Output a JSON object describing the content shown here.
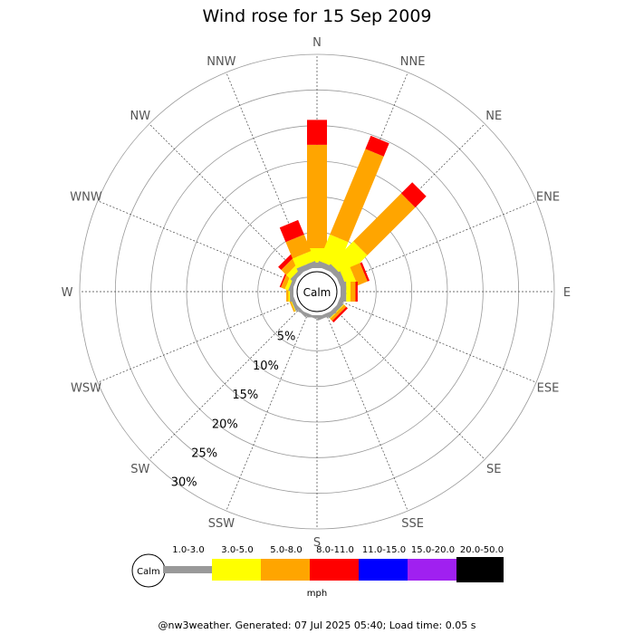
{
  "chart_data": {
    "type": "windrose",
    "title": "Wind rose for 15 Sep 2009",
    "directions": [
      "N",
      "NNE",
      "NE",
      "ENE",
      "E",
      "ESE",
      "SE",
      "SSE",
      "S",
      "SSW",
      "SW",
      "WSW",
      "W",
      "WNW",
      "NW",
      "NNW"
    ],
    "radial_ticks": [
      "5%",
      "10%",
      "15%",
      "20%",
      "25%",
      "30%"
    ],
    "radial_max": 30,
    "calm_label": "Calm",
    "bins": [
      {
        "label": "1.0-3.0",
        "color": "#999999"
      },
      {
        "label": "3.0-5.0",
        "color": "#ffff00"
      },
      {
        "label": "5.0-8.0",
        "color": "#ffa500"
      },
      {
        "label": "8.0-11.0",
        "color": "#ff0000"
      },
      {
        "label": "11.0-15.0",
        "color": "#0000ff"
      },
      {
        "label": "15.0-20.0",
        "color": "#a020f0"
      },
      {
        "label": "20.0-50.0",
        "color": "#000000"
      }
    ],
    "series": [
      {
        "direction": "N",
        "values": [
          0.8,
          2.0,
          14.5,
          3.5,
          0,
          0,
          0
        ]
      },
      {
        "direction": "NNE",
        "values": [
          0.8,
          4.0,
          13.0,
          2.0,
          0,
          0,
          0
        ]
      },
      {
        "direction": "NE",
        "values": [
          0.8,
          4.5,
          9.5,
          2.2,
          0,
          0,
          0
        ]
      },
      {
        "direction": "ENE",
        "values": [
          0.8,
          1.5,
          1.5,
          0.3,
          0,
          0,
          0
        ]
      },
      {
        "direction": "E",
        "values": [
          0.8,
          0.6,
          0.7,
          0.3,
          0,
          0,
          0
        ]
      },
      {
        "direction": "ESE",
        "values": [
          0.6,
          0,
          0,
          0,
          0,
          0,
          0
        ]
      },
      {
        "direction": "SE",
        "values": [
          0.6,
          0.1,
          0.4,
          0.3,
          0,
          0,
          0
        ]
      },
      {
        "direction": "SSE",
        "values": [
          0.5,
          0,
          0,
          0,
          0,
          0,
          0
        ]
      },
      {
        "direction": "S",
        "values": [
          0.3,
          0,
          0,
          0,
          0,
          0,
          0
        ]
      },
      {
        "direction": "SSW",
        "values": [
          0.3,
          0,
          0,
          0,
          0,
          0,
          0
        ]
      },
      {
        "direction": "SW",
        "values": [
          0.4,
          0,
          0,
          0,
          0,
          0,
          0
        ]
      },
      {
        "direction": "WSW",
        "values": [
          0.5,
          0.1,
          0.2,
          0,
          0,
          0,
          0
        ]
      },
      {
        "direction": "W",
        "values": [
          0.5,
          0.2,
          0.3,
          0,
          0,
          0,
          0
        ]
      },
      {
        "direction": "WNW",
        "values": [
          0.5,
          0.5,
          0.6,
          0.2,
          0,
          0,
          0
        ]
      },
      {
        "direction": "NW",
        "values": [
          0.6,
          0.8,
          1.0,
          0.6,
          0,
          0,
          0
        ]
      },
      {
        "direction": "NNW",
        "values": [
          0.8,
          1.5,
          2.5,
          2.2,
          0,
          0,
          0
        ]
      }
    ],
    "legend_unit": "mph",
    "grid": true
  },
  "footer": "@nw3weather. Generated: 07 Jul 2025 05:40; Load time: 0.05 s"
}
